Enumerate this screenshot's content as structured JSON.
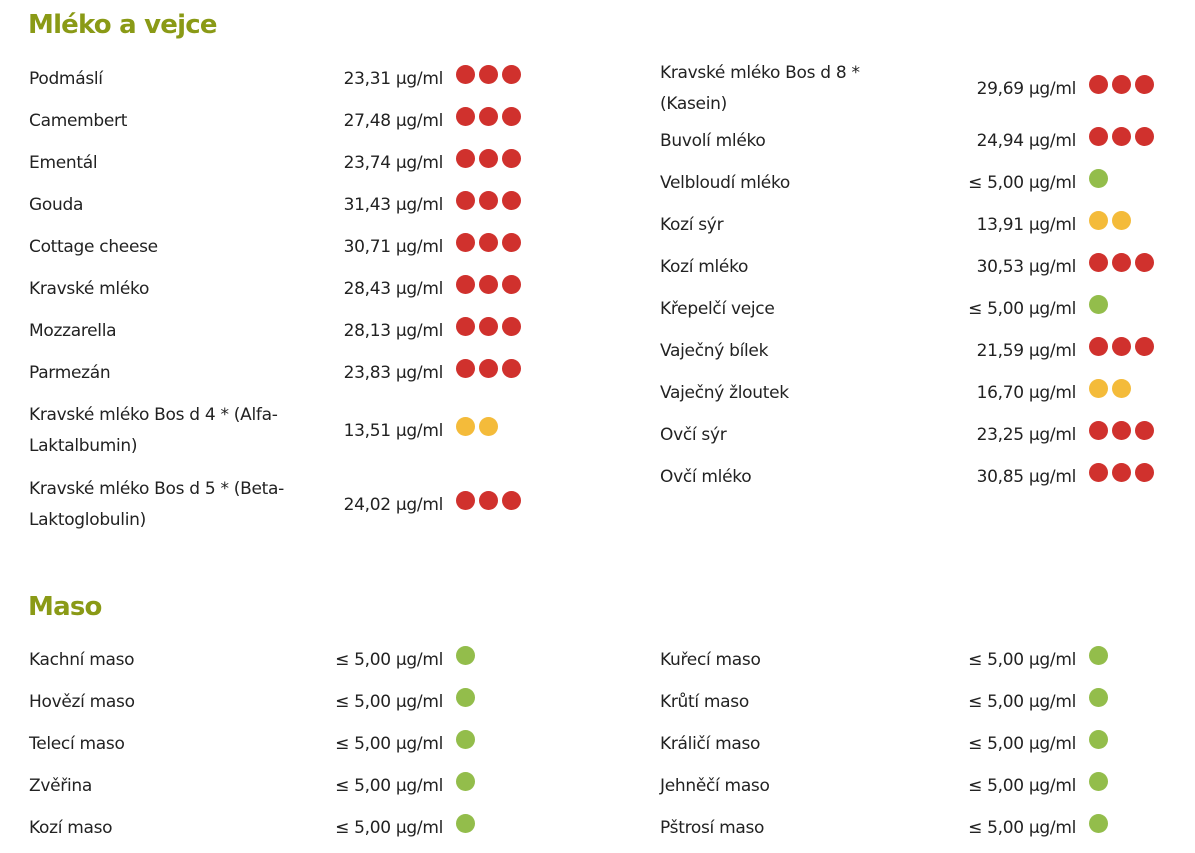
{
  "colors": {
    "heading": "#8a9a16",
    "red": "#d0312d",
    "yellow": "#f4bb3a",
    "green": "#93bd4b"
  },
  "sections": [
    {
      "title": "Mléko a vejce",
      "left": [
        {
          "name": "Podmáslí",
          "value": "23,31 µg/ml",
          "dots": [
            "red",
            "red",
            "red"
          ]
        },
        {
          "name": "Camembert",
          "value": "27,48 µg/ml",
          "dots": [
            "red",
            "red",
            "red"
          ]
        },
        {
          "name": "Ementál",
          "value": "23,74 µg/ml",
          "dots": [
            "red",
            "red",
            "red"
          ]
        },
        {
          "name": "Gouda",
          "value": "31,43 µg/ml",
          "dots": [
            "red",
            "red",
            "red"
          ]
        },
        {
          "name": "Cottage cheese",
          "value": "30,71 µg/ml",
          "dots": [
            "red",
            "red",
            "red"
          ]
        },
        {
          "name": "Kravské mléko",
          "value": "28,43 µg/ml",
          "dots": [
            "red",
            "red",
            "red"
          ]
        },
        {
          "name": "Mozzarella",
          "value": "28,13 µg/ml",
          "dots": [
            "red",
            "red",
            "red"
          ]
        },
        {
          "name": "Parmezán",
          "value": "23,83 µg/ml",
          "dots": [
            "red",
            "red",
            "red"
          ]
        },
        {
          "name": "Kravské mléko Bos d 4 * (Alfa-Laktalbumin)",
          "value": "13,51 µg/ml",
          "dots": [
            "yellow",
            "yellow"
          ]
        },
        {
          "name": "Kravské mléko Bos d 5 * (Beta-Laktoglobulin)",
          "value": "24,02 µg/ml",
          "dots": [
            "red",
            "red",
            "red"
          ]
        }
      ],
      "right": [
        {
          "name": "Kravské mléko Bos d 8 * (Kasein)",
          "value": "29,69 µg/ml",
          "dots": [
            "red",
            "red",
            "red"
          ]
        },
        {
          "name": "Buvolí mléko",
          "value": "24,94 µg/ml",
          "dots": [
            "red",
            "red",
            "red"
          ]
        },
        {
          "name": "Velbloudí mléko",
          "value": "≤ 5,00 µg/ml",
          "dots": [
            "green"
          ]
        },
        {
          "name": "Kozí sýr",
          "value": "13,91 µg/ml",
          "dots": [
            "yellow",
            "yellow"
          ]
        },
        {
          "name": "Kozí mléko",
          "value": "30,53 µg/ml",
          "dots": [
            "red",
            "red",
            "red"
          ]
        },
        {
          "name": "Křepelčí vejce",
          "value": "≤ 5,00 µg/ml",
          "dots": [
            "green"
          ]
        },
        {
          "name": "Vaječný bílek",
          "value": "21,59 µg/ml",
          "dots": [
            "red",
            "red",
            "red"
          ]
        },
        {
          "name": "Vaječný žloutek",
          "value": "16,70 µg/ml",
          "dots": [
            "yellow",
            "yellow"
          ]
        },
        {
          "name": "Ovčí sýr",
          "value": "23,25 µg/ml",
          "dots": [
            "red",
            "red",
            "red"
          ]
        },
        {
          "name": "Ovčí mléko",
          "value": "30,85 µg/ml",
          "dots": [
            "red",
            "red",
            "red"
          ]
        }
      ]
    },
    {
      "title": "Maso",
      "left": [
        {
          "name": "Kachní maso",
          "value": "≤ 5,00 µg/ml",
          "dots": [
            "green"
          ]
        },
        {
          "name": "Hovězí maso",
          "value": "≤ 5,00 µg/ml",
          "dots": [
            "green"
          ]
        },
        {
          "name": "Telecí maso",
          "value": "≤ 5,00 µg/ml",
          "dots": [
            "green"
          ]
        },
        {
          "name": "Zvěřina",
          "value": "≤ 5,00 µg/ml",
          "dots": [
            "green"
          ]
        },
        {
          "name": "Kozí maso",
          "value": "≤ 5,00 µg/ml",
          "dots": [
            "green"
          ]
        }
      ],
      "right": [
        {
          "name": "Kuřecí maso",
          "value": "≤ 5,00 µg/ml",
          "dots": [
            "green"
          ]
        },
        {
          "name": "Krůtí maso",
          "value": "≤ 5,00 µg/ml",
          "dots": [
            "green"
          ]
        },
        {
          "name": "Králičí maso",
          "value": "≤ 5,00 µg/ml",
          "dots": [
            "green"
          ]
        },
        {
          "name": "Jehněčí maso",
          "value": "≤ 5,00 µg/ml",
          "dots": [
            "green"
          ]
        },
        {
          "name": "Pštrosí maso",
          "value": "≤ 5,00 µg/ml",
          "dots": [
            "green"
          ]
        }
      ]
    }
  ]
}
